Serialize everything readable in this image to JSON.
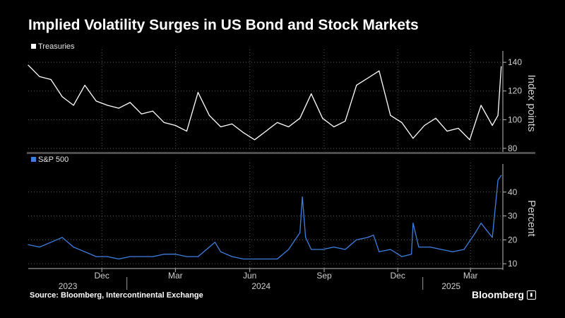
{
  "title": "Implied Volatility Surges in US Bond and Stock Markets",
  "source": "Source: Bloomberg, Intercontinental Exchange",
  "brand": "Bloomberg",
  "brand_icon": "bloomberg-chart-icon",
  "colors": {
    "background": "#000000",
    "treasuries": "#ffffff",
    "sp500": "#3d7fe0",
    "grid": "#5a5a5a"
  },
  "x_axis": {
    "month_ticks": [
      {
        "label": "Dec",
        "date": "2023-12-01"
      },
      {
        "label": "Mar",
        "date": "2024-03-01"
      },
      {
        "label": "Jun",
        "date": "2024-06-01"
      },
      {
        "label": "Sep",
        "date": "2024-09-01"
      },
      {
        "label": "Dec",
        "date": "2024-12-01"
      },
      {
        "label": "Mar",
        "date": "2025-03-01"
      }
    ],
    "year_labels": [
      {
        "label": "2023",
        "date": "2023-10-20"
      },
      {
        "label": "2024",
        "date": "2024-06-15"
      },
      {
        "label": "2025",
        "date": "2025-02-05"
      }
    ],
    "year_dividers": [
      "2024-01-01",
      "2025-01-01"
    ],
    "range": [
      "2023-09-01",
      "2025-04-10"
    ]
  },
  "chart_data": [
    {
      "type": "line",
      "legend": "Treasuries",
      "ylabel": "Index points",
      "ylim": [
        78,
        145
      ],
      "yticks": [
        80,
        100,
        120,
        140
      ],
      "grid": true,
      "legend_position": "top-left",
      "series": [
        {
          "name": "Treasuries",
          "x": [
            "2023-09-01",
            "2023-09-15",
            "2023-09-29",
            "2023-10-13",
            "2023-10-27",
            "2023-11-10",
            "2023-11-24",
            "2023-12-08",
            "2023-12-22",
            "2024-01-05",
            "2024-01-19",
            "2024-02-02",
            "2024-02-16",
            "2024-03-01",
            "2024-03-15",
            "2024-03-29",
            "2024-04-12",
            "2024-04-26",
            "2024-05-10",
            "2024-05-24",
            "2024-06-07",
            "2024-06-21",
            "2024-07-05",
            "2024-07-19",
            "2024-08-02",
            "2024-08-16",
            "2024-08-30",
            "2024-09-13",
            "2024-09-27",
            "2024-10-11",
            "2024-10-25",
            "2024-11-08",
            "2024-11-22",
            "2024-12-06",
            "2024-12-20",
            "2025-01-03",
            "2025-01-17",
            "2025-01-31",
            "2025-02-14",
            "2025-02-28",
            "2025-03-14",
            "2025-03-28",
            "2025-04-04",
            "2025-04-08"
          ],
          "values": [
            138,
            130,
            128,
            116,
            110,
            124,
            113,
            110,
            108,
            112,
            104,
            106,
            98,
            96,
            92,
            119,
            103,
            95,
            97,
            91,
            86,
            92,
            98,
            95,
            101,
            118,
            101,
            95,
            99,
            124,
            129,
            134,
            103,
            98,
            87,
            96,
            101,
            92,
            94,
            86,
            110,
            96,
            103,
            137
          ]
        }
      ]
    },
    {
      "type": "line",
      "legend": "S&P 500",
      "ylabel": "Percent",
      "ylim": [
        8,
        50
      ],
      "yticks": [
        10,
        20,
        30,
        40
      ],
      "grid": true,
      "legend_position": "top-left",
      "series": [
        {
          "name": "S&P 500",
          "x": [
            "2023-09-01",
            "2023-09-15",
            "2023-09-29",
            "2023-10-13",
            "2023-10-27",
            "2023-11-10",
            "2023-11-24",
            "2023-12-08",
            "2023-12-22",
            "2024-01-05",
            "2024-01-19",
            "2024-02-02",
            "2024-02-16",
            "2024-03-01",
            "2024-03-15",
            "2024-03-29",
            "2024-04-12",
            "2024-04-19",
            "2024-04-26",
            "2024-05-10",
            "2024-05-24",
            "2024-06-07",
            "2024-06-21",
            "2024-07-05",
            "2024-07-19",
            "2024-08-02",
            "2024-08-05",
            "2024-08-09",
            "2024-08-16",
            "2024-08-30",
            "2024-09-13",
            "2024-09-27",
            "2024-10-11",
            "2024-10-25",
            "2024-11-01",
            "2024-11-08",
            "2024-11-22",
            "2024-12-06",
            "2024-12-18",
            "2024-12-20",
            "2024-12-27",
            "2025-01-10",
            "2025-01-24",
            "2025-02-07",
            "2025-02-21",
            "2025-03-07",
            "2025-03-14",
            "2025-03-28",
            "2025-04-04",
            "2025-04-08"
          ],
          "values": [
            18,
            17,
            19,
            21,
            17,
            15,
            13,
            13,
            12,
            13,
            13,
            13,
            14,
            14,
            13,
            13,
            17,
            19,
            15,
            13,
            12,
            12,
            12,
            12,
            16,
            23,
            38,
            21,
            16,
            16,
            17,
            16,
            20,
            21,
            22,
            15,
            16,
            13,
            14,
            27,
            17,
            17,
            16,
            15,
            16,
            23,
            27,
            21,
            45,
            47
          ]
        }
      ]
    }
  ]
}
